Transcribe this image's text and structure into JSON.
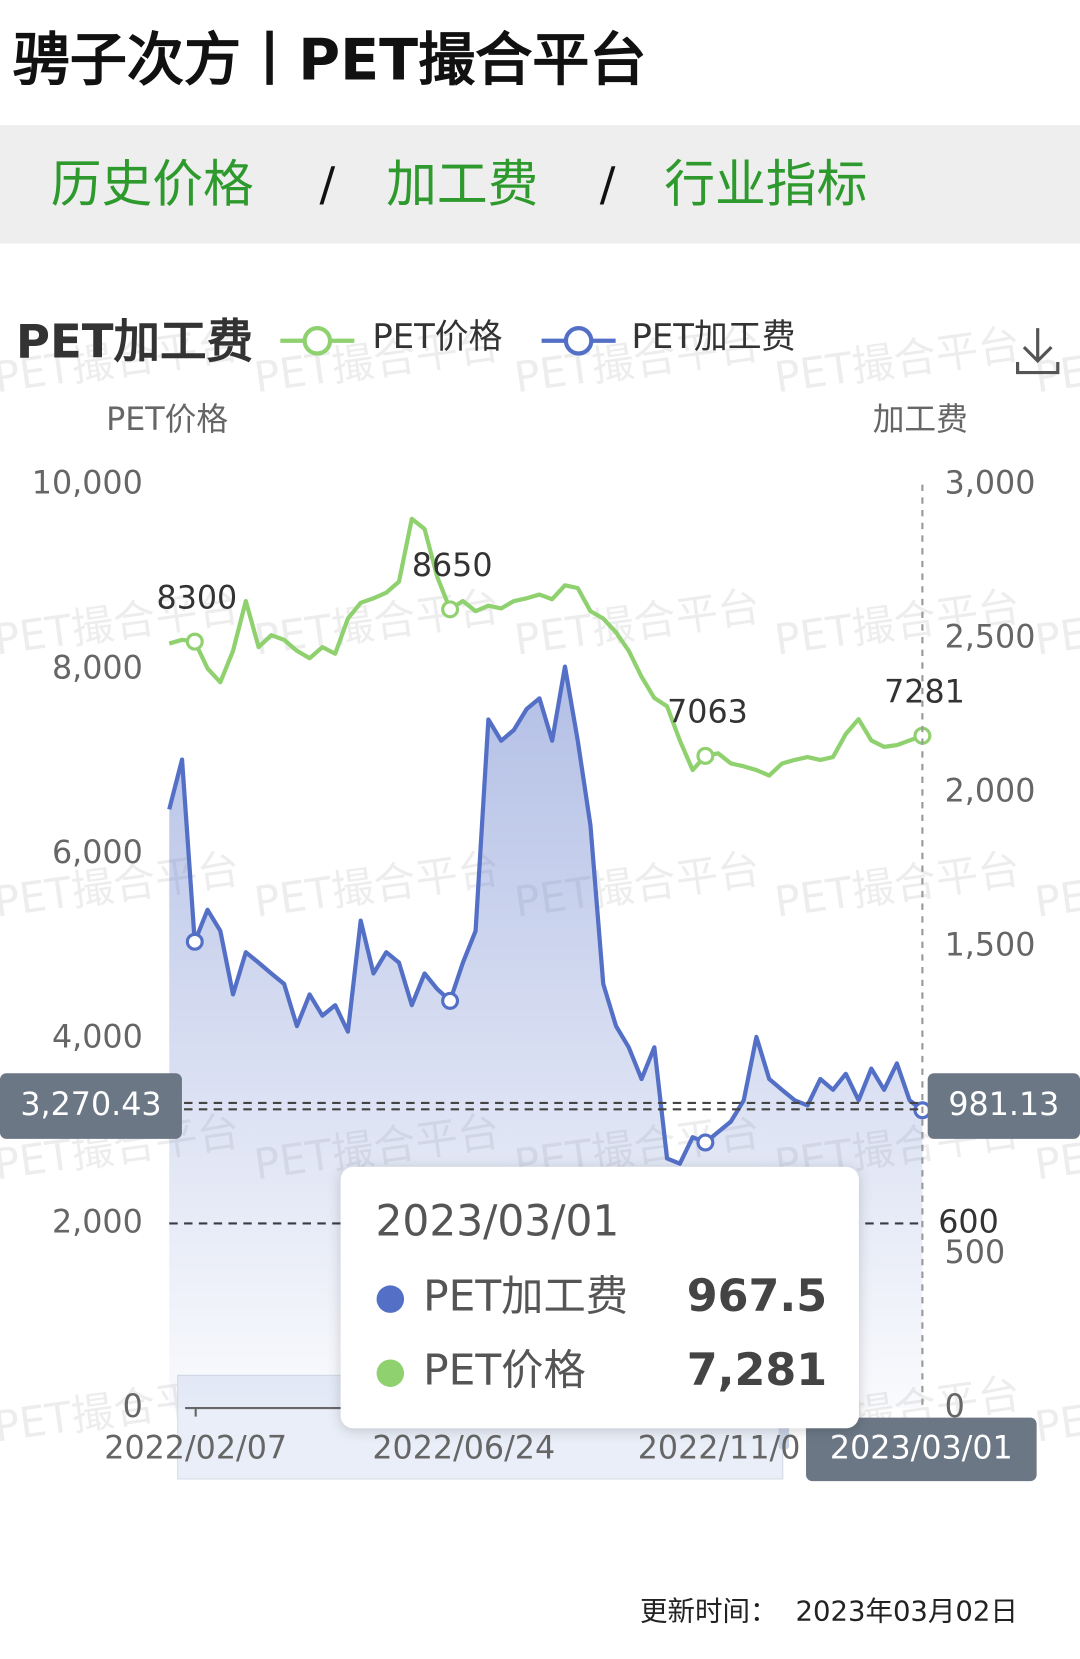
{
  "header": {
    "title": "骋子次方丨PET撮合平台"
  },
  "nav": {
    "items": [
      "历史价格",
      "加工费",
      "行业指标"
    ],
    "separator": "/"
  },
  "chart_data": {
    "type": "line",
    "title": "PET加工费",
    "watermark": "PET撮合平台",
    "y_axis_name": "PET价格",
    "y2_axis_name": "加工费",
    "categories": [
      "2022/02/07",
      null,
      null,
      null,
      null,
      null,
      null,
      null,
      null,
      null,
      null,
      null,
      null,
      null,
      null,
      null,
      null,
      null,
      null,
      null,
      null,
      "2022/06/24",
      null,
      null,
      null,
      null,
      null,
      null,
      null,
      null,
      null,
      null,
      null,
      null,
      null,
      null,
      null,
      null,
      null,
      null,
      null,
      "2022/11/0",
      null,
      null,
      null,
      null,
      null,
      null,
      null,
      null,
      null,
      null,
      null,
      null,
      null,
      null,
      null,
      null,
      null,
      "2023/03/01"
    ],
    "ylim": [
      0,
      10000
    ],
    "yticks": [
      0,
      {
        "value": 2000,
        "label": "2,000"
      },
      {
        "value": 4000,
        "label": "4,000"
      },
      {
        "value": 6000,
        "label": "6,000"
      },
      {
        "value": 8000,
        "label": "8,000"
      },
      {
        "value": 10000,
        "label": "10,000"
      }
    ],
    "y2lim": [
      0,
      3000
    ],
    "y2ticks": [
      0,
      500,
      {
        "value": 1500,
        "label": "1,500"
      },
      {
        "value": 2000,
        "label": "2,000"
      },
      {
        "value": 2500,
        "label": "2,500"
      },
      {
        "value": 3000,
        "label": "3,000"
      }
    ],
    "series": [
      {
        "name": "PET价格",
        "color": "#8fd16f",
        "marked_points": [
          2,
          22,
          42,
          59
        ],
        "values": [
          8280,
          8320,
          8300,
          8010,
          7860,
          8200,
          8740,
          8240,
          8370,
          8320,
          8200,
          8120,
          8240,
          8170,
          8550,
          8720,
          8770,
          8830,
          8950,
          9630,
          9520,
          9000,
          8650,
          8740,
          8630,
          8690,
          8660,
          8740,
          8770,
          8810,
          8760,
          8910,
          8880,
          8630,
          8550,
          8400,
          8200,
          7920,
          7690,
          7600,
          7230,
          6910,
          7063,
          7090,
          6980,
          6950,
          6910,
          6850,
          6980,
          7020,
          7050,
          7020,
          7050,
          7300,
          7460,
          7230,
          7160,
          7180,
          7230,
          7281
        ]
      },
      {
        "name": "PET加工费",
        "color": "#5470c6",
        "axis": "y2",
        "area": true,
        "marked_points": [
          2,
          22,
          42,
          59
        ],
        "values": [
          1945,
          2107,
          1515,
          1619,
          1550,
          1344,
          1481,
          1447,
          1412,
          1378,
          1241,
          1344,
          1275,
          1309,
          1223,
          1584,
          1412,
          1481,
          1447,
          1309,
          1412,
          1361,
          1323,
          1447,
          1550,
          2237,
          2168,
          2203,
          2271,
          2306,
          2168,
          2409,
          2168,
          1893,
          1378,
          1241,
          1172,
          1069,
          1172,
          811,
          794,
          880,
          863,
          897,
          931,
          1000,
          1206,
          1069,
          1034,
          1000,
          983,
          1069,
          1034,
          1086,
          1000,
          1103,
          1034,
          1120,
          1000,
          967.5
        ]
      }
    ],
    "y2_markline": 600,
    "pointer": {
      "y": {
        "value": 3270.43,
        "label": "3,270.43"
      },
      "y2": 981.13
    },
    "tooltip": {
      "date": "2023/03/01",
      "rows": [
        {
          "name": "PET加工费",
          "value": "967.5"
        },
        {
          "name": "PET价格",
          "value": "7,281"
        }
      ]
    }
  },
  "footer": {
    "label": "更新时间：",
    "date": "2023年03月02日"
  }
}
